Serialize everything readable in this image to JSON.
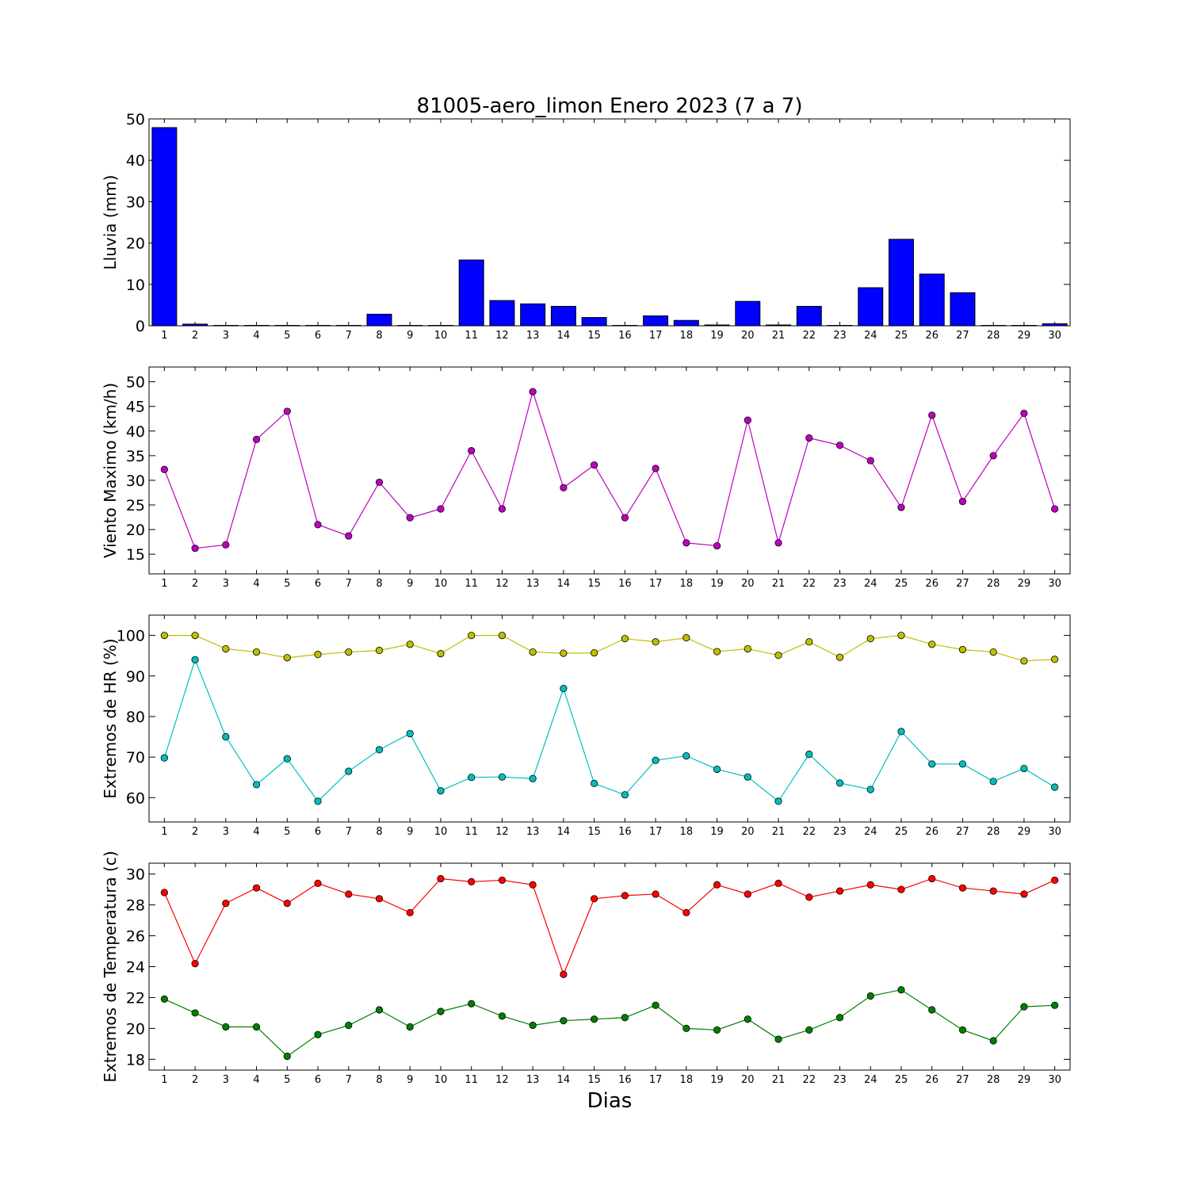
{
  "figure": {
    "title": "81005-aero_limon Enero 2023  (7 a 7)",
    "xlabel": "Dias"
  },
  "chart_data": [
    {
      "type": "bar",
      "ylabel": "Lluvia (mm)",
      "ylim": [
        0,
        50
      ],
      "yticks": [
        0,
        10,
        20,
        30,
        40,
        50
      ],
      "xlim": [
        0.5,
        30.5
      ],
      "categories": [
        1,
        2,
        3,
        4,
        5,
        6,
        7,
        8,
        9,
        10,
        11,
        12,
        13,
        14,
        15,
        16,
        17,
        18,
        19,
        20,
        21,
        22,
        23,
        24,
        25,
        26,
        27,
        28,
        29,
        30
      ],
      "series": [
        {
          "color": "#0000ff",
          "values": [
            47.9,
            0.4,
            0,
            0,
            0,
            0,
            0,
            2.8,
            0,
            0,
            15.9,
            6.1,
            5.3,
            4.7,
            2.0,
            0,
            2.4,
            1.3,
            0.2,
            5.9,
            0.2,
            4.7,
            0,
            9.2,
            20.9,
            12.5,
            8.0,
            0,
            0,
            0.5
          ]
        }
      ]
    },
    {
      "type": "line",
      "ylabel": "Viento Maximo (km/h)",
      "ylim": [
        11,
        53
      ],
      "yticks": [
        15,
        20,
        25,
        30,
        35,
        40,
        45,
        50
      ],
      "xlim": [
        0.5,
        30.5
      ],
      "x": [
        1,
        2,
        3,
        4,
        5,
        6,
        7,
        8,
        9,
        10,
        11,
        12,
        13,
        14,
        15,
        16,
        17,
        18,
        19,
        20,
        21,
        22,
        23,
        24,
        25,
        26,
        27,
        28,
        29,
        30
      ],
      "series": [
        {
          "color": "#bf00bf",
          "values": [
            32.2,
            16.2,
            16.9,
            38.3,
            44.0,
            21.0,
            18.7,
            29.6,
            22.4,
            24.2,
            36.0,
            24.2,
            48.0,
            28.5,
            33.1,
            22.4,
            32.4,
            17.3,
            16.7,
            42.2,
            17.3,
            38.6,
            37.1,
            34.0,
            24.5,
            43.2,
            25.7,
            35.0,
            43.6,
            24.2
          ]
        }
      ]
    },
    {
      "type": "line",
      "ylabel": "Extremos de HR (%)",
      "ylim": [
        54,
        105
      ],
      "yticks": [
        60,
        70,
        80,
        90,
        100
      ],
      "xlim": [
        0.5,
        30.5
      ],
      "x": [
        1,
        2,
        3,
        4,
        5,
        6,
        7,
        8,
        9,
        10,
        11,
        12,
        13,
        14,
        15,
        16,
        17,
        18,
        19,
        20,
        21,
        22,
        23,
        24,
        25,
        26,
        27,
        28,
        29,
        30
      ],
      "series": [
        {
          "color": "#bfbf00",
          "values": [
            100,
            100,
            96.7,
            95.9,
            94.5,
            95.3,
            95.9,
            96.3,
            97.8,
            95.5,
            100,
            100,
            95.9,
            95.6,
            95.7,
            99.2,
            98.4,
            99.4,
            96.0,
            96.7,
            95.1,
            98.4,
            94.6,
            99.2,
            100,
            97.8,
            96.5,
            95.9,
            93.7,
            94.1
          ]
        },
        {
          "color": "#00bfbf",
          "values": [
            69.8,
            94.0,
            75.0,
            63.2,
            69.6,
            59.1,
            66.5,
            71.8,
            75.8,
            61.7,
            65.0,
            65.1,
            64.7,
            86.9,
            63.5,
            60.7,
            69.2,
            70.3,
            67.0,
            65.1,
            59.1,
            70.7,
            63.6,
            62.0,
            76.3,
            68.3,
            68.3,
            64.0,
            67.2,
            62.6
          ]
        }
      ]
    },
    {
      "type": "line",
      "ylabel": "Extremos de Temperatura (c)",
      "ylim": [
        17.3,
        30.7
      ],
      "yticks": [
        18,
        20,
        22,
        24,
        26,
        28,
        30
      ],
      "xlim": [
        0.5,
        30.5
      ],
      "x": [
        1,
        2,
        3,
        4,
        5,
        6,
        7,
        8,
        9,
        10,
        11,
        12,
        13,
        14,
        15,
        16,
        17,
        18,
        19,
        20,
        21,
        22,
        23,
        24,
        25,
        26,
        27,
        28,
        29,
        30
      ],
      "series": [
        {
          "color": "#ff0000",
          "values": [
            28.8,
            24.2,
            28.1,
            29.1,
            28.1,
            29.4,
            28.7,
            28.4,
            27.5,
            29.7,
            29.5,
            29.6,
            29.3,
            23.5,
            28.4,
            28.6,
            28.7,
            27.5,
            29.3,
            28.7,
            29.4,
            28.5,
            28.9,
            29.3,
            29.0,
            29.7,
            29.1,
            28.9,
            28.7,
            29.6
          ]
        },
        {
          "color": "#008000",
          "values": [
            21.9,
            21.0,
            20.1,
            20.1,
            18.2,
            19.6,
            20.2,
            21.2,
            20.1,
            21.1,
            21.6,
            20.8,
            20.2,
            20.5,
            20.6,
            20.7,
            21.5,
            20.0,
            19.9,
            20.6,
            19.3,
            19.9,
            20.7,
            22.1,
            22.5,
            21.2,
            19.9,
            19.2,
            21.4,
            21.5
          ]
        }
      ]
    }
  ]
}
